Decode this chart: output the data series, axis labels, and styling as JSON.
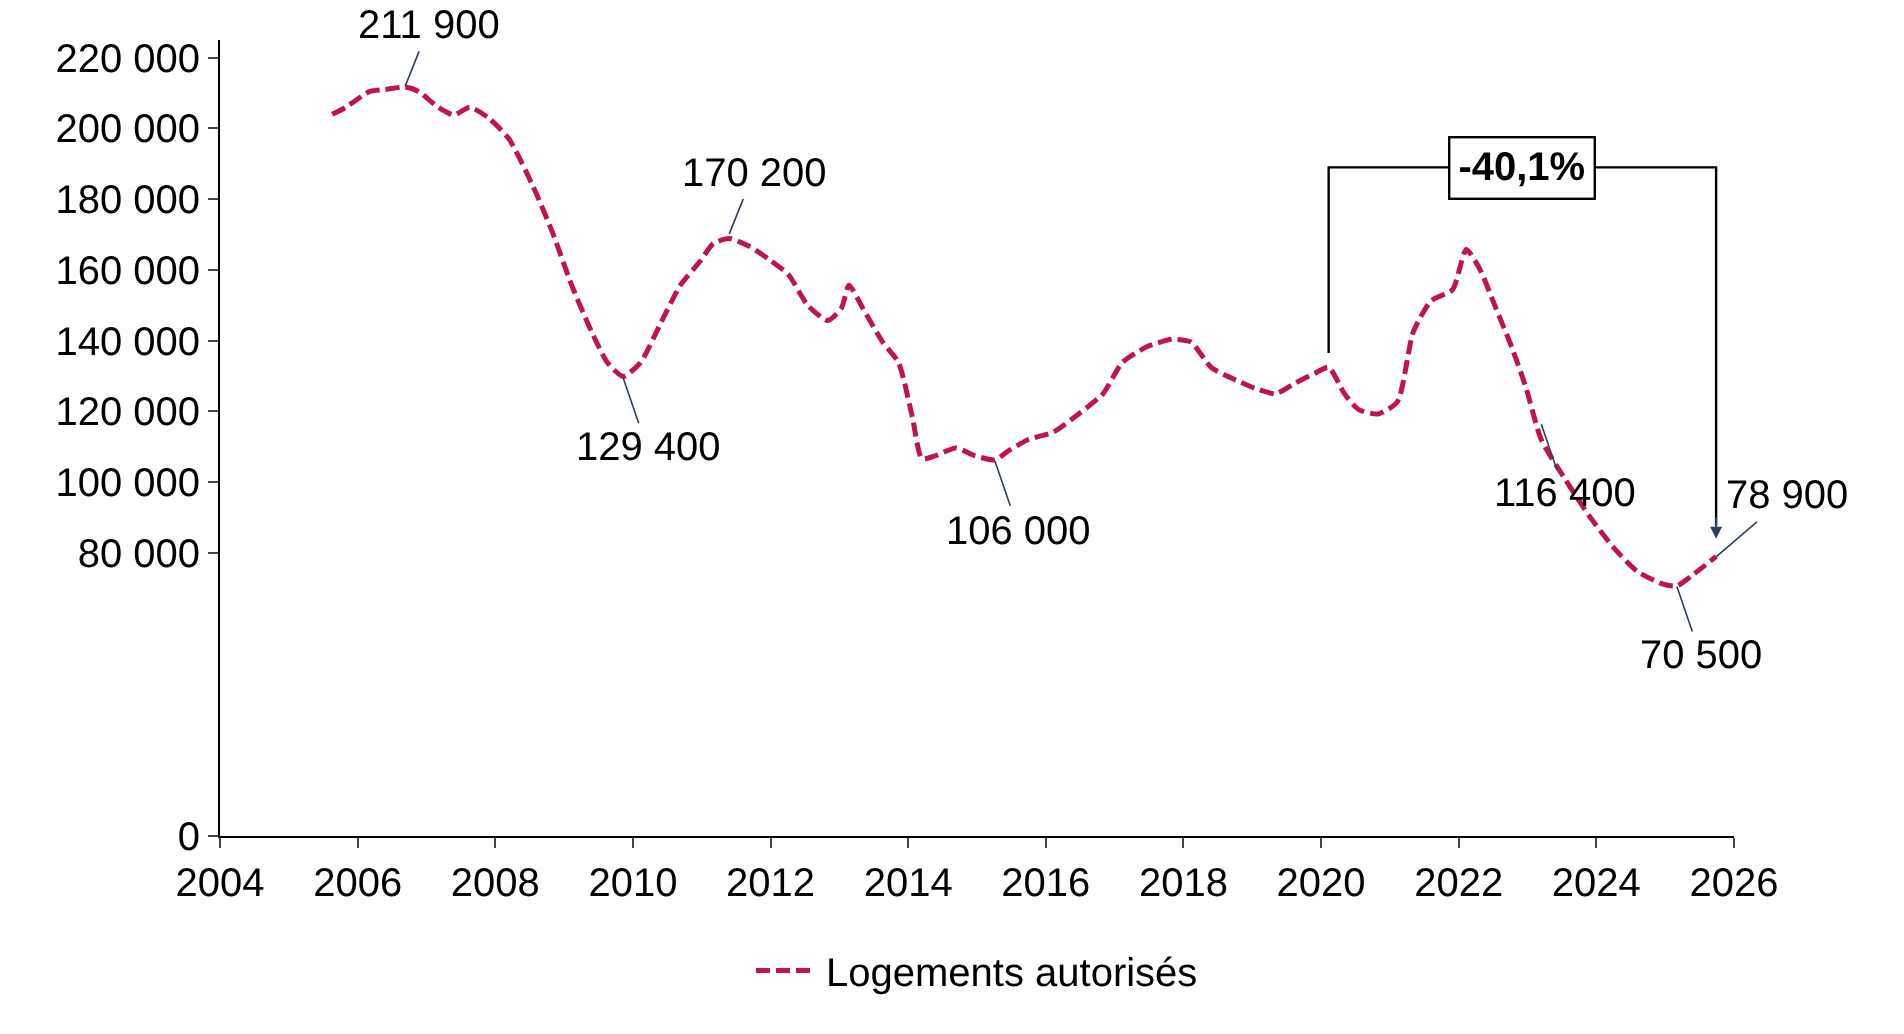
{
  "chart_data": {
    "type": "line",
    "series": [
      {
        "name": "Logements autorisés",
        "color": "#c0144c",
        "x": [
          2005.63,
          2005.83,
          2006.17,
          2006.4,
          2006.69,
          2006.89,
          2007.17,
          2007.4,
          2007.63,
          2007.9,
          2008.2,
          2008.54,
          2008.83,
          2009.11,
          2009.4,
          2009.63,
          2009.86,
          2010.11,
          2010.4,
          2010.69,
          2010.97,
          2011.17,
          2011.4,
          2011.69,
          2011.97,
          2012.26,
          2012.54,
          2012.83,
          2013.03,
          2013.14,
          2013.34,
          2013.63,
          2013.86,
          2014.06,
          2014.2,
          2014.4,
          2014.69,
          2014.97,
          2015.26,
          2015.46,
          2015.74,
          2016.11,
          2016.49,
          2016.83,
          2017.11,
          2017.46,
          2017.83,
          2018.11,
          2018.4,
          2018.69,
          2019.06,
          2019.34,
          2019.63,
          2019.91,
          2020.11,
          2020.34,
          2020.54,
          2020.83,
          2021.11,
          2021.34,
          2021.6,
          2021.91,
          2022.11,
          2022.31,
          2022.54,
          2022.77,
          2022.97,
          2023.2,
          2023.54,
          2023.91,
          2024.26,
          2024.6,
          2024.97,
          2025.17,
          2025.4,
          2025.74
        ],
        "values": [
          204000,
          206000,
          210400,
          211000,
          211700,
          210400,
          206000,
          203800,
          206000,
          203000,
          197000,
          184000,
          170700,
          155700,
          142500,
          133800,
          129900,
          133800,
          144800,
          155700,
          162300,
          167500,
          168900,
          166700,
          163100,
          158700,
          150000,
          145700,
          149200,
          155700,
          149200,
          139600,
          133800,
          118500,
          106700,
          107500,
          109700,
          107500,
          106300,
          108900,
          112000,
          114200,
          119500,
          125000,
          133800,
          138200,
          140400,
          139600,
          132500,
          129500,
          126400,
          125000,
          128100,
          130800,
          132500,
          125000,
          120600,
          119300,
          122800,
          142500,
          151300,
          154400,
          165800,
          160100,
          149200,
          138200,
          127200,
          112000,
          101000,
          90100,
          81300,
          74700,
          71200,
          70700,
          73800,
          79000
        ]
      }
    ],
    "xlim": [
      2004,
      2026
    ],
    "xticks": [
      2004,
      2006,
      2008,
      2010,
      2012,
      2014,
      2016,
      2018,
      2020,
      2022,
      2024,
      2026
    ],
    "ylim": [
      0,
      225000
    ],
    "yticks": [
      0,
      {
        "value": 80000,
        "label": "80 000"
      },
      {
        "value": 100000,
        "label": "100 000"
      },
      {
        "value": 120000,
        "label": "120 000"
      },
      {
        "value": 140000,
        "label": "140 000"
      },
      {
        "value": 160000,
        "label": "160 000"
      },
      {
        "value": 180000,
        "label": "180 000"
      },
      {
        "value": 200000,
        "label": "200 000"
      },
      {
        "value": 220000,
        "label": "220 000"
      }
    ],
    "line_style": "dashed",
    "marker": "none",
    "legend": "bottom",
    "annotations": [
      {
        "text": "211 900",
        "x": 2006.69,
        "y": 211900
      },
      {
        "text": "129 400",
        "x": 2009.86,
        "y": 129400
      },
      {
        "text": "170 200",
        "x": 2011.4,
        "y": 170200
      },
      {
        "text": "106 000",
        "x": 2015.26,
        "y": 106000
      },
      {
        "text": "116 400",
        "x": 2023.2,
        "y": 116400
      },
      {
        "text": "70 500",
        "x": 2025.17,
        "y": 70500
      },
      {
        "text": "78 900",
        "x": 2025.74,
        "y": 78900
      },
      "-40,1%"
    ]
  }
}
